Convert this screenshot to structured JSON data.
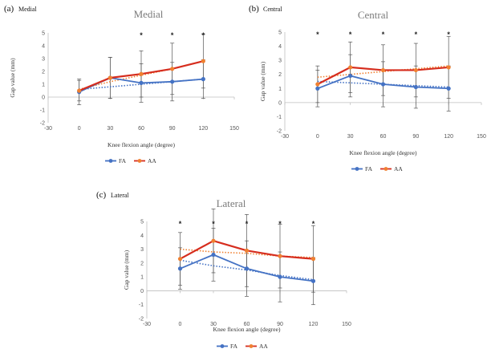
{
  "figure": {
    "fa_color": "#4472C4",
    "aa_color": "#D62D1E",
    "fa_trend_color": "#4472C4",
    "aa_trend_color": "#F08030"
  },
  "chart_data": [
    {
      "type": "line",
      "panel": "(a)",
      "panel_name": "Medial",
      "title": "Medial",
      "xlabel": "Knee flexion angle (degree)",
      "ylabel": "Gap value (mm)",
      "xlim": [
        -30,
        150
      ],
      "ylim": [
        -2,
        5
      ],
      "xticks": [
        -30,
        0,
        30,
        60,
        90,
        120,
        150
      ],
      "yticks": [
        -2,
        -1,
        0,
        1,
        2,
        3,
        4,
        5
      ],
      "x": [
        0,
        30,
        60,
        90,
        120
      ],
      "series": [
        {
          "name": "FA",
          "values": [
            0.4,
            1.5,
            1.1,
            1.2,
            1.4
          ],
          "errors": [
            1.0,
            1.6,
            1.5,
            1.5,
            1.5
          ],
          "trend": [
            0.6,
            0.8,
            1.0,
            1.2,
            1.4
          ]
        },
        {
          "name": "AA",
          "values": [
            0.5,
            1.5,
            1.8,
            2.2,
            2.8
          ],
          "errors": [
            0.8,
            1.6,
            1.8,
            2.0,
            2.1
          ],
          "trend": [
            0.6,
            1.2,
            1.7,
            2.2,
            2.8
          ]
        }
      ],
      "significant": [
        false,
        false,
        true,
        true,
        true
      ],
      "annotations": [
        "*",
        "*",
        "*"
      ]
    },
    {
      "type": "line",
      "panel": "(b)",
      "panel_name": "Central",
      "title": "Central",
      "xlabel": "Knee flexion angle (degree)",
      "ylabel": "Gap value (mm)",
      "xlim": [
        -30,
        150
      ],
      "ylim": [
        -2,
        5
      ],
      "xticks": [
        -30,
        0,
        30,
        60,
        90,
        120,
        150
      ],
      "yticks": [
        -2,
        -1,
        0,
        1,
        2,
        3,
        4,
        5
      ],
      "x": [
        0,
        30,
        60,
        90,
        120
      ],
      "series": [
        {
          "name": "FA",
          "values": [
            1.0,
            1.9,
            1.3,
            1.1,
            1.0
          ],
          "errors": [
            1.3,
            1.5,
            1.6,
            1.5,
            1.6
          ],
          "trend": [
            1.5,
            1.4,
            1.3,
            1.2,
            1.1
          ]
        },
        {
          "name": "AA",
          "values": [
            1.3,
            2.5,
            2.3,
            2.3,
            2.5
          ],
          "errors": [
            1.3,
            1.8,
            1.8,
            1.9,
            2.2
          ],
          "trend": [
            1.8,
            2.0,
            2.2,
            2.4,
            2.6
          ]
        }
      ],
      "significant": [
        true,
        true,
        true,
        true,
        true
      ],
      "annotations": [
        "*",
        "*",
        "*",
        "*",
        "*"
      ]
    },
    {
      "type": "line",
      "panel": "(c)",
      "panel_name": "Lateral",
      "title": "Lateral",
      "xlabel": "Knee flexion angle (degree)",
      "ylabel": "Gap value (mm)",
      "xlim": [
        -30,
        150
      ],
      "ylim": [
        -2,
        5
      ],
      "xticks": [
        -30,
        0,
        30,
        60,
        90,
        120,
        150
      ],
      "yticks": [
        -2,
        -1,
        0,
        1,
        2,
        3,
        4,
        5
      ],
      "x": [
        0,
        30,
        60,
        90,
        120
      ],
      "series": [
        {
          "name": "FA",
          "values": [
            1.6,
            2.6,
            1.6,
            1.0,
            0.7
          ],
          "errors": [
            1.5,
            1.9,
            2.0,
            1.8,
            1.7
          ],
          "trend": [
            2.2,
            1.8,
            1.5,
            1.1,
            0.8
          ]
        },
        {
          "name": "AA",
          "values": [
            2.3,
            3.6,
            2.9,
            2.5,
            2.3
          ],
          "errors": [
            1.9,
            2.3,
            2.6,
            2.3,
            2.4
          ],
          "trend": [
            3.0,
            2.8,
            2.7,
            2.5,
            2.4
          ]
        }
      ],
      "significant": [
        true,
        true,
        true,
        true,
        true
      ],
      "annotations": [
        "*",
        "*",
        "*",
        "*",
        "*"
      ]
    }
  ]
}
